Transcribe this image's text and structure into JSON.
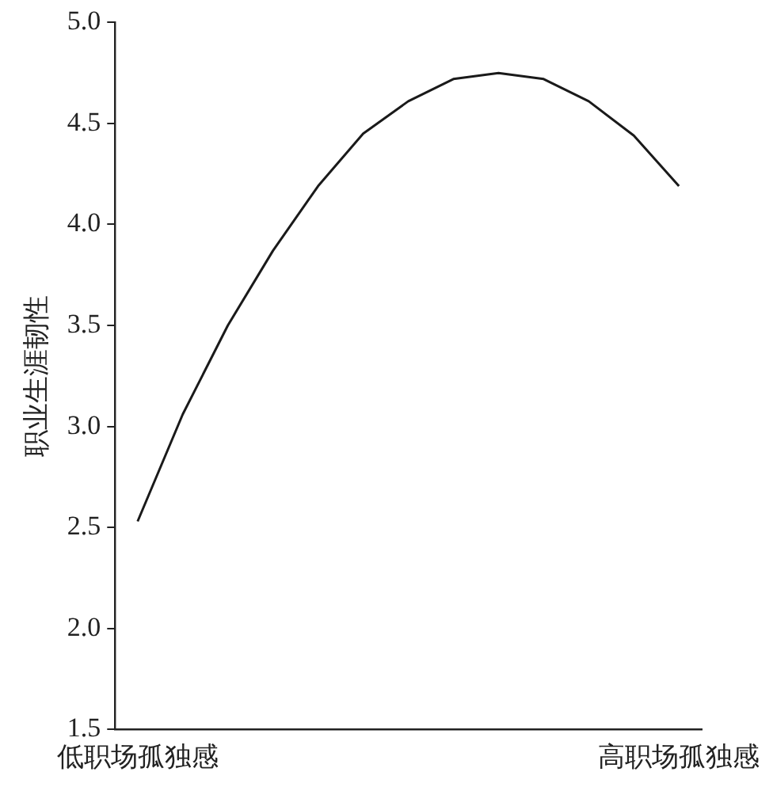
{
  "chart_data": {
    "type": "line",
    "ylabel": "职业生涯韧性",
    "categories": [
      "低职场孤独感",
      null,
      null,
      null,
      null,
      null,
      null,
      null,
      null,
      null,
      null,
      null,
      "高职场孤独感"
    ],
    "values": [
      2.53,
      3.06,
      3.5,
      3.87,
      4.19,
      4.45,
      4.61,
      4.72,
      4.75,
      4.72,
      4.61,
      4.44,
      4.19
    ],
    "color": "#1a1a1a",
    "ylim": [
      1.5,
      5.0
    ],
    "yticks": [
      {
        "value": 1.5,
        "label": "1.5"
      },
      {
        "value": 2,
        "label": "2.0"
      },
      {
        "value": 2.5,
        "label": "2.5"
      },
      {
        "value": 3,
        "label": "3.0"
      },
      {
        "value": 3.5,
        "label": "3.5"
      },
      {
        "value": 4,
        "label": "4.0"
      },
      {
        "value": 4.5,
        "label": "4.5"
      },
      {
        "value": 5,
        "label": "5.0"
      }
    ],
    "grid": false,
    "legend": false,
    "marker": "none",
    "line_style": "solid"
  }
}
